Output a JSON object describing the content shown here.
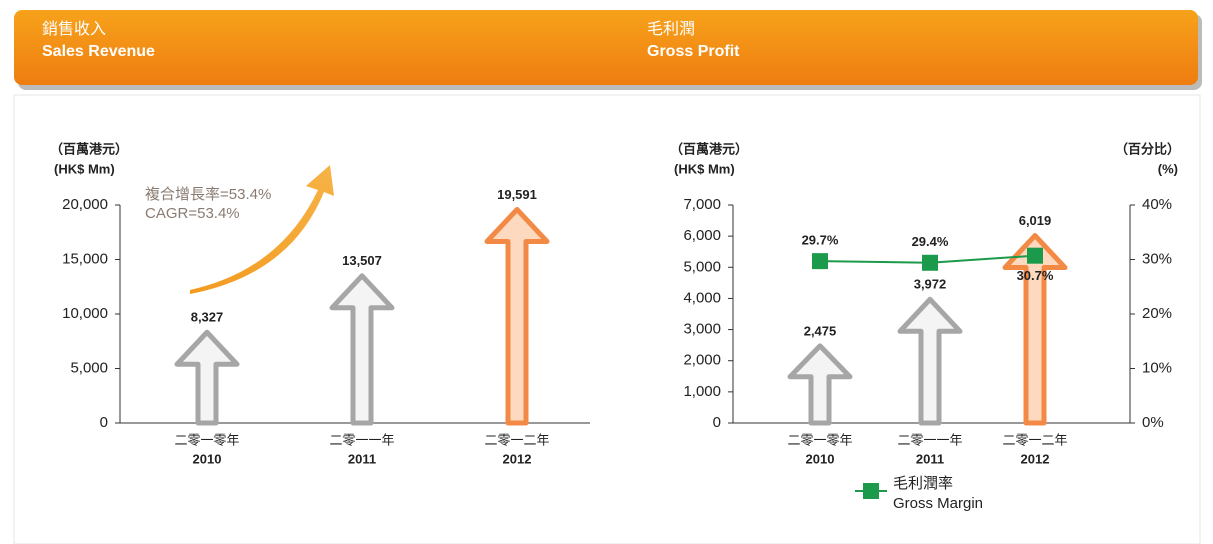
{
  "chart_data": [
    {
      "type": "bar",
      "title": "銷售收入",
      "subtitle": "Sales Revenue",
      "y_label": "（百萬港元）",
      "y_unit": "(HK$ Mm)",
      "annotation": [
        "複合增長率=53.4%",
        "CAGR=53.4%"
      ],
      "categories": [
        "二零一零年",
        "二零一一年",
        "二零一二年"
      ],
      "categories_en": [
        "2010",
        "2011",
        "2012"
      ],
      "values": [
        8327,
        13507,
        19591
      ],
      "value_labels": [
        "8,327",
        "13,507",
        "19,591"
      ],
      "colors": [
        "#a6a6a6",
        "#a6a6a6",
        "#f28a45"
      ],
      "ylim": [
        0,
        20000
      ],
      "yticks": [
        0,
        {
          "value": 5000,
          "label": "5,000"
        },
        {
          "value": 10000,
          "label": "10,000"
        },
        {
          "value": 15000,
          "label": "15,000"
        },
        {
          "value": 20000,
          "label": "20,000"
        }
      ]
    },
    {
      "type": "bar",
      "title": "毛利潤",
      "subtitle": "Gross Profit",
      "y_label": "（百萬港元）",
      "y_unit": "(HK$ Mm)",
      "y2_label": "（百分比）",
      "y2_unit": "(%)",
      "categories": [
        "二零一零年",
        "二零一一年",
        "二零一二年"
      ],
      "categories_en": [
        "2010",
        "2011",
        "2012"
      ],
      "values": [
        2475,
        3972,
        6019
      ],
      "value_labels": [
        "2,475",
        "3,972",
        "6,019"
      ],
      "colors": [
        "#a6a6a6",
        "#a6a6a6",
        "#f28a45"
      ],
      "ylim": [
        0,
        7000
      ],
      "yticks": [
        0,
        {
          "value": 1000,
          "label": "1,000"
        },
        {
          "value": 2000,
          "label": "2,000"
        },
        {
          "value": 3000,
          "label": "3,000"
        },
        {
          "value": 4000,
          "label": "4,000"
        },
        {
          "value": 5000,
          "label": "5,000"
        },
        {
          "value": 6000,
          "label": "6,000"
        },
        {
          "value": 7000,
          "label": "7,000"
        }
      ],
      "y2lim": [
        0,
        40
      ],
      "y2ticks": [
        {
          "value": 0,
          "label": "0%"
        },
        {
          "value": 10,
          "label": "10%"
        },
        {
          "value": 20,
          "label": "20%"
        },
        {
          "value": 30,
          "label": "30%"
        },
        {
          "value": 40,
          "label": "40%"
        }
      ],
      "series": [
        {
          "name": "毛利潤率",
          "name_en": "Gross Margin",
          "color": "#1a9a4a",
          "axis": "y2",
          "values": [
            29.7,
            29.4,
            30.7
          ],
          "value_labels": [
            "29.7%",
            "29.4%",
            "30.7%"
          ]
        }
      ]
    }
  ]
}
